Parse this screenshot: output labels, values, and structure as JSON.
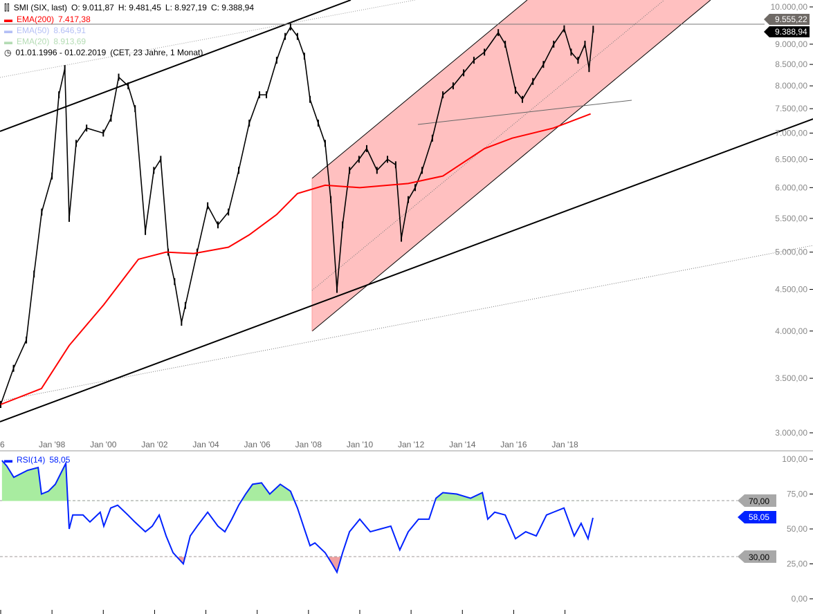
{
  "legend": {
    "symbol": "SMI (SIX, last)",
    "open": "O: 9.011,87",
    "high": "H: 9.481,45",
    "low": "L: 8.927,19",
    "close": "C: 9.388,94",
    "ema200": {
      "label": "EMA(200)",
      "value": "7.417,38",
      "color": "#ff0000"
    },
    "ema50": {
      "label": "EMA(50)",
      "value": "8.646,91",
      "color": "#b4bff5"
    },
    "ema20": {
      "label": "EMA(20)",
      "value": "8.913,69",
      "color": "#b4dcb4"
    },
    "range": "01.01.1996 - 01.02.2019",
    "range_info": "(CET, 23 Jahre, 1 Monat)",
    "rsi": {
      "label": "RSI(14)",
      "value": "58,05",
      "color": "#0022ff"
    }
  },
  "price_tags": {
    "last": "9.555,22",
    "close": "9.388,94"
  },
  "rsi_tags": {
    "upper": "70,00",
    "lower": "30,00",
    "current": "58,05"
  },
  "chart_data": [
    {
      "type": "line",
      "title": "SMI (SIX, last)",
      "y_scale": "log",
      "ylim": [
        3000,
        10000
      ],
      "yticks": [
        "10.000,00",
        "9.000,00",
        "8.500,00",
        "8.000,00",
        "7.500,00",
        "7.000,00",
        "6.500,00",
        "6.000,00",
        "5.500,00",
        "5.000,00",
        "4.500,00",
        "4.000,00",
        "3.500,00",
        "3.000,00"
      ],
      "ytick_values": [
        10000,
        9000,
        8500,
        8000,
        7500,
        7000,
        6500,
        6000,
        5500,
        5000,
        4500,
        4000,
        3500,
        3000
      ],
      "xticks": [
        "6",
        "Jan '98",
        "Jan '00",
        "Jan '02",
        "Jan '04",
        "Jan '06",
        "Jan '08",
        "Jan '10",
        "Jan '12",
        "Jan '14",
        "Jan '16",
        "Jan '18"
      ],
      "xtick_years": [
        1996,
        1998,
        2000,
        2002,
        2004,
        2006,
        2008,
        2010,
        2012,
        2014,
        2016,
        2018
      ],
      "xlim": [
        1996,
        2020.4
      ],
      "series": [
        {
          "name": "SMI (SIX, last)",
          "color": "#000000",
          "points": [
            [
              1996.0,
              3250
            ],
            [
              1996.5,
              3600
            ],
            [
              1997.0,
              3900
            ],
            [
              1997.3,
              4700
            ],
            [
              1997.6,
              5600
            ],
            [
              1998.0,
              6200
            ],
            [
              1998.27,
              7800
            ],
            [
              1998.5,
              8400
            ],
            [
              1998.67,
              5500
            ],
            [
              1998.94,
              6800
            ],
            [
              1999.35,
              7100
            ],
            [
              2000.0,
              7000
            ],
            [
              2000.3,
              7300
            ],
            [
              2000.6,
              8200
            ],
            [
              2000.97,
              8000
            ],
            [
              2001.24,
              7500
            ],
            [
              2001.64,
              5300
            ],
            [
              2001.97,
              6300
            ],
            [
              2002.24,
              6500
            ],
            [
              2002.53,
              5000
            ],
            [
              2002.78,
              4600
            ],
            [
              2003.05,
              4100
            ],
            [
              2003.2,
              4300
            ],
            [
              2003.66,
              5000
            ],
            [
              2004.07,
              5700
            ],
            [
              2004.47,
              5400
            ],
            [
              2004.88,
              5600
            ],
            [
              2005.28,
              6300
            ],
            [
              2005.69,
              7200
            ],
            [
              2006.09,
              7800
            ],
            [
              2006.36,
              7800
            ],
            [
              2006.76,
              8600
            ],
            [
              2007.09,
              9200
            ],
            [
              2007.3,
              9450
            ],
            [
              2007.57,
              9200
            ],
            [
              2007.84,
              8700
            ],
            [
              2008.06,
              7700
            ],
            [
              2008.38,
              7200
            ],
            [
              2008.65,
              6800
            ],
            [
              2008.87,
              5800
            ],
            [
              2009.11,
              4500
            ],
            [
              2009.33,
              5400
            ],
            [
              2009.6,
              6300
            ],
            [
              2009.97,
              6500
            ],
            [
              2010.27,
              6700
            ],
            [
              2010.67,
              6300
            ],
            [
              2011.08,
              6500
            ],
            [
              2011.4,
              6400
            ],
            [
              2011.62,
              5200
            ],
            [
              2011.89,
              5800
            ],
            [
              2012.16,
              6000
            ],
            [
              2012.43,
              6300
            ],
            [
              2012.83,
              6900
            ],
            [
              2013.24,
              7800
            ],
            [
              2013.64,
              8000
            ],
            [
              2014.05,
              8300
            ],
            [
              2014.45,
              8600
            ],
            [
              2014.86,
              8800
            ],
            [
              2015.4,
              9300
            ],
            [
              2015.67,
              9000
            ],
            [
              2016.07,
              7900
            ],
            [
              2016.34,
              7700
            ],
            [
              2016.75,
              8100
            ],
            [
              2017.16,
              8500
            ],
            [
              2017.56,
              9000
            ],
            [
              2017.97,
              9400
            ],
            [
              2018.24,
              8800
            ],
            [
              2018.51,
              8600
            ],
            [
              2018.78,
              9000
            ],
            [
              2018.94,
              8400
            ],
            [
              2019.1,
              9389
            ]
          ]
        },
        {
          "name": "EMA(200)",
          "color": "#ff0000",
          "points": [
            [
              1996.0,
              3250
            ],
            [
              1997.59,
              3400
            ],
            [
              1998.67,
              3840
            ],
            [
              2000.02,
              4310
            ],
            [
              2001.37,
              4900
            ],
            [
              2002.45,
              5000
            ],
            [
              2003.53,
              4980
            ],
            [
              2004.88,
              5070
            ],
            [
              2005.69,
              5250
            ],
            [
              2006.76,
              5560
            ],
            [
              2007.57,
              5900
            ],
            [
              2008.65,
              6040
            ],
            [
              2010.0,
              6000
            ],
            [
              2011.89,
              6070
            ],
            [
              2013.24,
              6200
            ],
            [
              2014.86,
              6700
            ],
            [
              2015.94,
              6900
            ],
            [
              2017.55,
              7100
            ],
            [
              2019.0,
              7390
            ]
          ]
        }
      ]
    },
    {
      "type": "line",
      "title": "RSI(14)",
      "ylim": [
        0,
        100
      ],
      "yticks": [
        "100,00",
        "75,00",
        "50,00",
        "25,00",
        "0,00"
      ],
      "ytick_values": [
        100,
        75,
        50,
        25,
        0
      ],
      "levels": [
        70,
        30
      ],
      "series": [
        {
          "name": "RSI(14)",
          "color": "#0022ff",
          "points": [
            [
              1996.05,
              99
            ],
            [
              1996.24,
              95
            ],
            [
              1996.51,
              87
            ],
            [
              1997.05,
              92
            ],
            [
              1997.46,
              94
            ],
            [
              1997.59,
              75
            ],
            [
              1997.86,
              77
            ],
            [
              1998.13,
              82
            ],
            [
              1998.54,
              97
            ],
            [
              1998.67,
              50
            ],
            [
              1998.81,
              60
            ],
            [
              1999.21,
              60
            ],
            [
              1999.48,
              55
            ],
            [
              1999.88,
              62
            ],
            [
              2000.02,
              52
            ],
            [
              2000.29,
              65
            ],
            [
              2000.56,
              67
            ],
            [
              2000.96,
              60
            ],
            [
              2001.23,
              55
            ],
            [
              2001.64,
              48
            ],
            [
              2001.91,
              52
            ],
            [
              2002.18,
              60
            ],
            [
              2002.45,
              45
            ],
            [
              2002.72,
              33
            ],
            [
              2003.12,
              25
            ],
            [
              2003.39,
              45
            ],
            [
              2003.66,
              52
            ],
            [
              2004.07,
              62
            ],
            [
              2004.47,
              52
            ],
            [
              2004.74,
              48
            ],
            [
              2005.01,
              57
            ],
            [
              2005.28,
              67
            ],
            [
              2005.55,
              75
            ],
            [
              2005.82,
              82
            ],
            [
              2006.17,
              83
            ],
            [
              2006.49,
              75
            ],
            [
              2006.9,
              82
            ],
            [
              2007.3,
              77
            ],
            [
              2007.57,
              65
            ],
            [
              2007.84,
              50
            ],
            [
              2008.06,
              38
            ],
            [
              2008.25,
              40
            ],
            [
              2008.65,
              33
            ],
            [
              2008.92,
              25
            ],
            [
              2009.11,
              19
            ],
            [
              2009.33,
              33
            ],
            [
              2009.6,
              48
            ],
            [
              2010.0,
              57
            ],
            [
              2010.41,
              48
            ],
            [
              2010.81,
              50
            ],
            [
              2011.21,
              52
            ],
            [
              2011.56,
              35
            ],
            [
              2011.89,
              48
            ],
            [
              2012.29,
              57
            ],
            [
              2012.7,
              57
            ],
            [
              2012.97,
              72
            ],
            [
              2013.24,
              76
            ],
            [
              2013.78,
              75
            ],
            [
              2014.32,
              72
            ],
            [
              2014.78,
              76
            ],
            [
              2014.99,
              57
            ],
            [
              2015.26,
              62
            ],
            [
              2015.67,
              60
            ],
            [
              2016.07,
              43
            ],
            [
              2016.47,
              48
            ],
            [
              2016.88,
              45
            ],
            [
              2017.28,
              60
            ],
            [
              2017.55,
              62
            ],
            [
              2017.96,
              65
            ],
            [
              2018.36,
              45
            ],
            [
              2018.63,
              54
            ],
            [
              2018.9,
              43
            ],
            [
              2019.09,
              58
            ]
          ]
        }
      ]
    }
  ]
}
